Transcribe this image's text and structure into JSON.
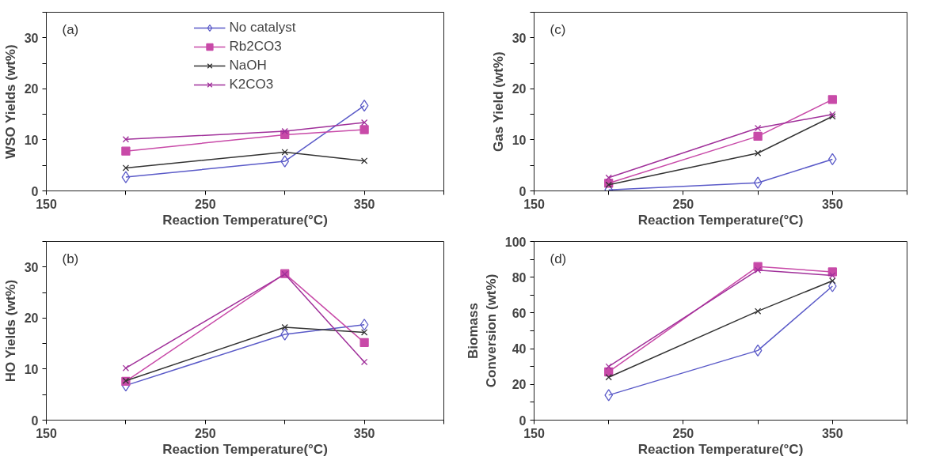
{
  "chart_data": [
    {
      "type": "line",
      "annotations": [
        "(a)"
      ],
      "xlabel": "Reaction Temperature(°C)",
      "ylabel": "WSO Yields (wt%)",
      "x": [
        200,
        300,
        350
      ],
      "xlim": [
        150,
        400
      ],
      "xticks": [
        150,
        {
          "value": 200,
          "label": null
        },
        250,
        {
          "value": 300,
          "label": null
        },
        350,
        {
          "value": 400,
          "label": null
        }
      ],
      "ylim": [
        0,
        35
      ],
      "yticks": [
        0,
        {
          "value": 5,
          "label": null
        },
        10,
        {
          "value": 15,
          "label": null
        },
        20,
        {
          "value": 25,
          "label": null
        },
        30,
        {
          "value": 35,
          "label": null
        }
      ],
      "legend": "top",
      "grid": false,
      "series": [
        {
          "name": "No catalyst",
          "color": "#5a5ac8",
          "marker": "diamond",
          "values": [
            2.7,
            5.8,
            16.7
          ]
        },
        {
          "name": "Rb2CO3",
          "color": "#c84aa8",
          "marker": "square",
          "values": [
            7.8,
            11.0,
            12.0
          ]
        },
        {
          "name": "NaOH",
          "color": "#333333",
          "marker": "cross",
          "values": [
            4.5,
            7.6,
            5.9
          ]
        },
        {
          "name": "K2CO3",
          "color": "#a0309a",
          "marker": "cross",
          "values": [
            10.1,
            11.7,
            13.4
          ]
        }
      ]
    },
    {
      "type": "line",
      "annotations": [
        "(c)"
      ],
      "xlabel": "Reaction Temperature(°C)",
      "ylabel": "Gas Yield (wt%)",
      "x": [
        200,
        300,
        350
      ],
      "xlim": [
        150,
        400
      ],
      "xticks": [
        150,
        {
          "value": 200,
          "label": null
        },
        250,
        {
          "value": 300,
          "label": null
        },
        350,
        {
          "value": 400,
          "label": null
        }
      ],
      "ylim": [
        0,
        35
      ],
      "yticks": [
        0,
        {
          "value": 5,
          "label": null
        },
        10,
        {
          "value": 15,
          "label": null
        },
        20,
        {
          "value": 25,
          "label": null
        },
        30,
        {
          "value": 35,
          "label": null
        }
      ],
      "grid": false,
      "series": [
        {
          "color": "#5a5ac8",
          "marker": "diamond",
          "values": [
            0.2,
            1.6,
            6.2
          ]
        },
        {
          "color": "#c84aa8",
          "marker": "square",
          "values": [
            1.5,
            10.7,
            17.9
          ]
        },
        {
          "color": "#333333",
          "marker": "cross",
          "values": [
            1.2,
            7.4,
            14.6
          ]
        },
        {
          "color": "#a0309a",
          "marker": "cross",
          "values": [
            2.6,
            12.3,
            15.0
          ]
        }
      ]
    },
    {
      "type": "line",
      "annotations": [
        "(b)"
      ],
      "xlabel": "Reaction Temperature(°C)",
      "ylabel": "HO Yields (wt%)",
      "x": [
        200,
        300,
        350
      ],
      "xlim": [
        150,
        400
      ],
      "xticks": [
        150,
        {
          "value": 200,
          "label": null
        },
        250,
        {
          "value": 300,
          "label": null
        },
        350,
        {
          "value": 400,
          "label": null
        }
      ],
      "ylim": [
        0,
        35
      ],
      "yticks": [
        0,
        {
          "value": 5,
          "label": null
        },
        10,
        {
          "value": 15,
          "label": null
        },
        20,
        {
          "value": 25,
          "label": null
        },
        30,
        {
          "value": 35,
          "label": null
        }
      ],
      "grid": false,
      "series": [
        {
          "color": "#5a5ac8",
          "marker": "diamond",
          "values": [
            6.8,
            16.8,
            18.7
          ]
        },
        {
          "color": "#c84aa8",
          "marker": "square",
          "values": [
            7.6,
            28.7,
            15.2
          ]
        },
        {
          "color": "#333333",
          "marker": "cross",
          "values": [
            7.7,
            18.2,
            17.2
          ]
        },
        {
          "color": "#a0309a",
          "marker": "cross",
          "values": [
            10.2,
            28.6,
            11.4
          ]
        }
      ]
    },
    {
      "type": "line",
      "annotations": [
        "(d)"
      ],
      "xlabel": "Reaction Temperature(°C)",
      "ylabel": "Biomass\nConversion (wt%)",
      "x": [
        200,
        300,
        350
      ],
      "xlim": [
        150,
        400
      ],
      "xticks": [
        150,
        {
          "value": 200,
          "label": null
        },
        250,
        {
          "value": 300,
          "label": null
        },
        350,
        {
          "value": 400,
          "label": null
        }
      ],
      "ylim": [
        0,
        100
      ],
      "yticks": [
        0,
        {
          "value": 10,
          "label": null
        },
        20,
        {
          "value": 30,
          "label": null
        },
        40,
        {
          "value": 50,
          "label": null
        },
        60,
        {
          "value": 70,
          "label": null
        },
        80,
        {
          "value": 90,
          "label": null
        },
        100
      ],
      "grid": false,
      "series": [
        {
          "color": "#5a5ac8",
          "marker": "diamond",
          "values": [
            14,
            39,
            75
          ]
        },
        {
          "color": "#c84aa8",
          "marker": "square",
          "values": [
            27,
            86,
            83
          ]
        },
        {
          "color": "#333333",
          "marker": "cross",
          "values": [
            24,
            61,
            78
          ]
        },
        {
          "color": "#a0309a",
          "marker": "cross",
          "values": [
            30,
            84,
            81
          ]
        }
      ]
    }
  ]
}
